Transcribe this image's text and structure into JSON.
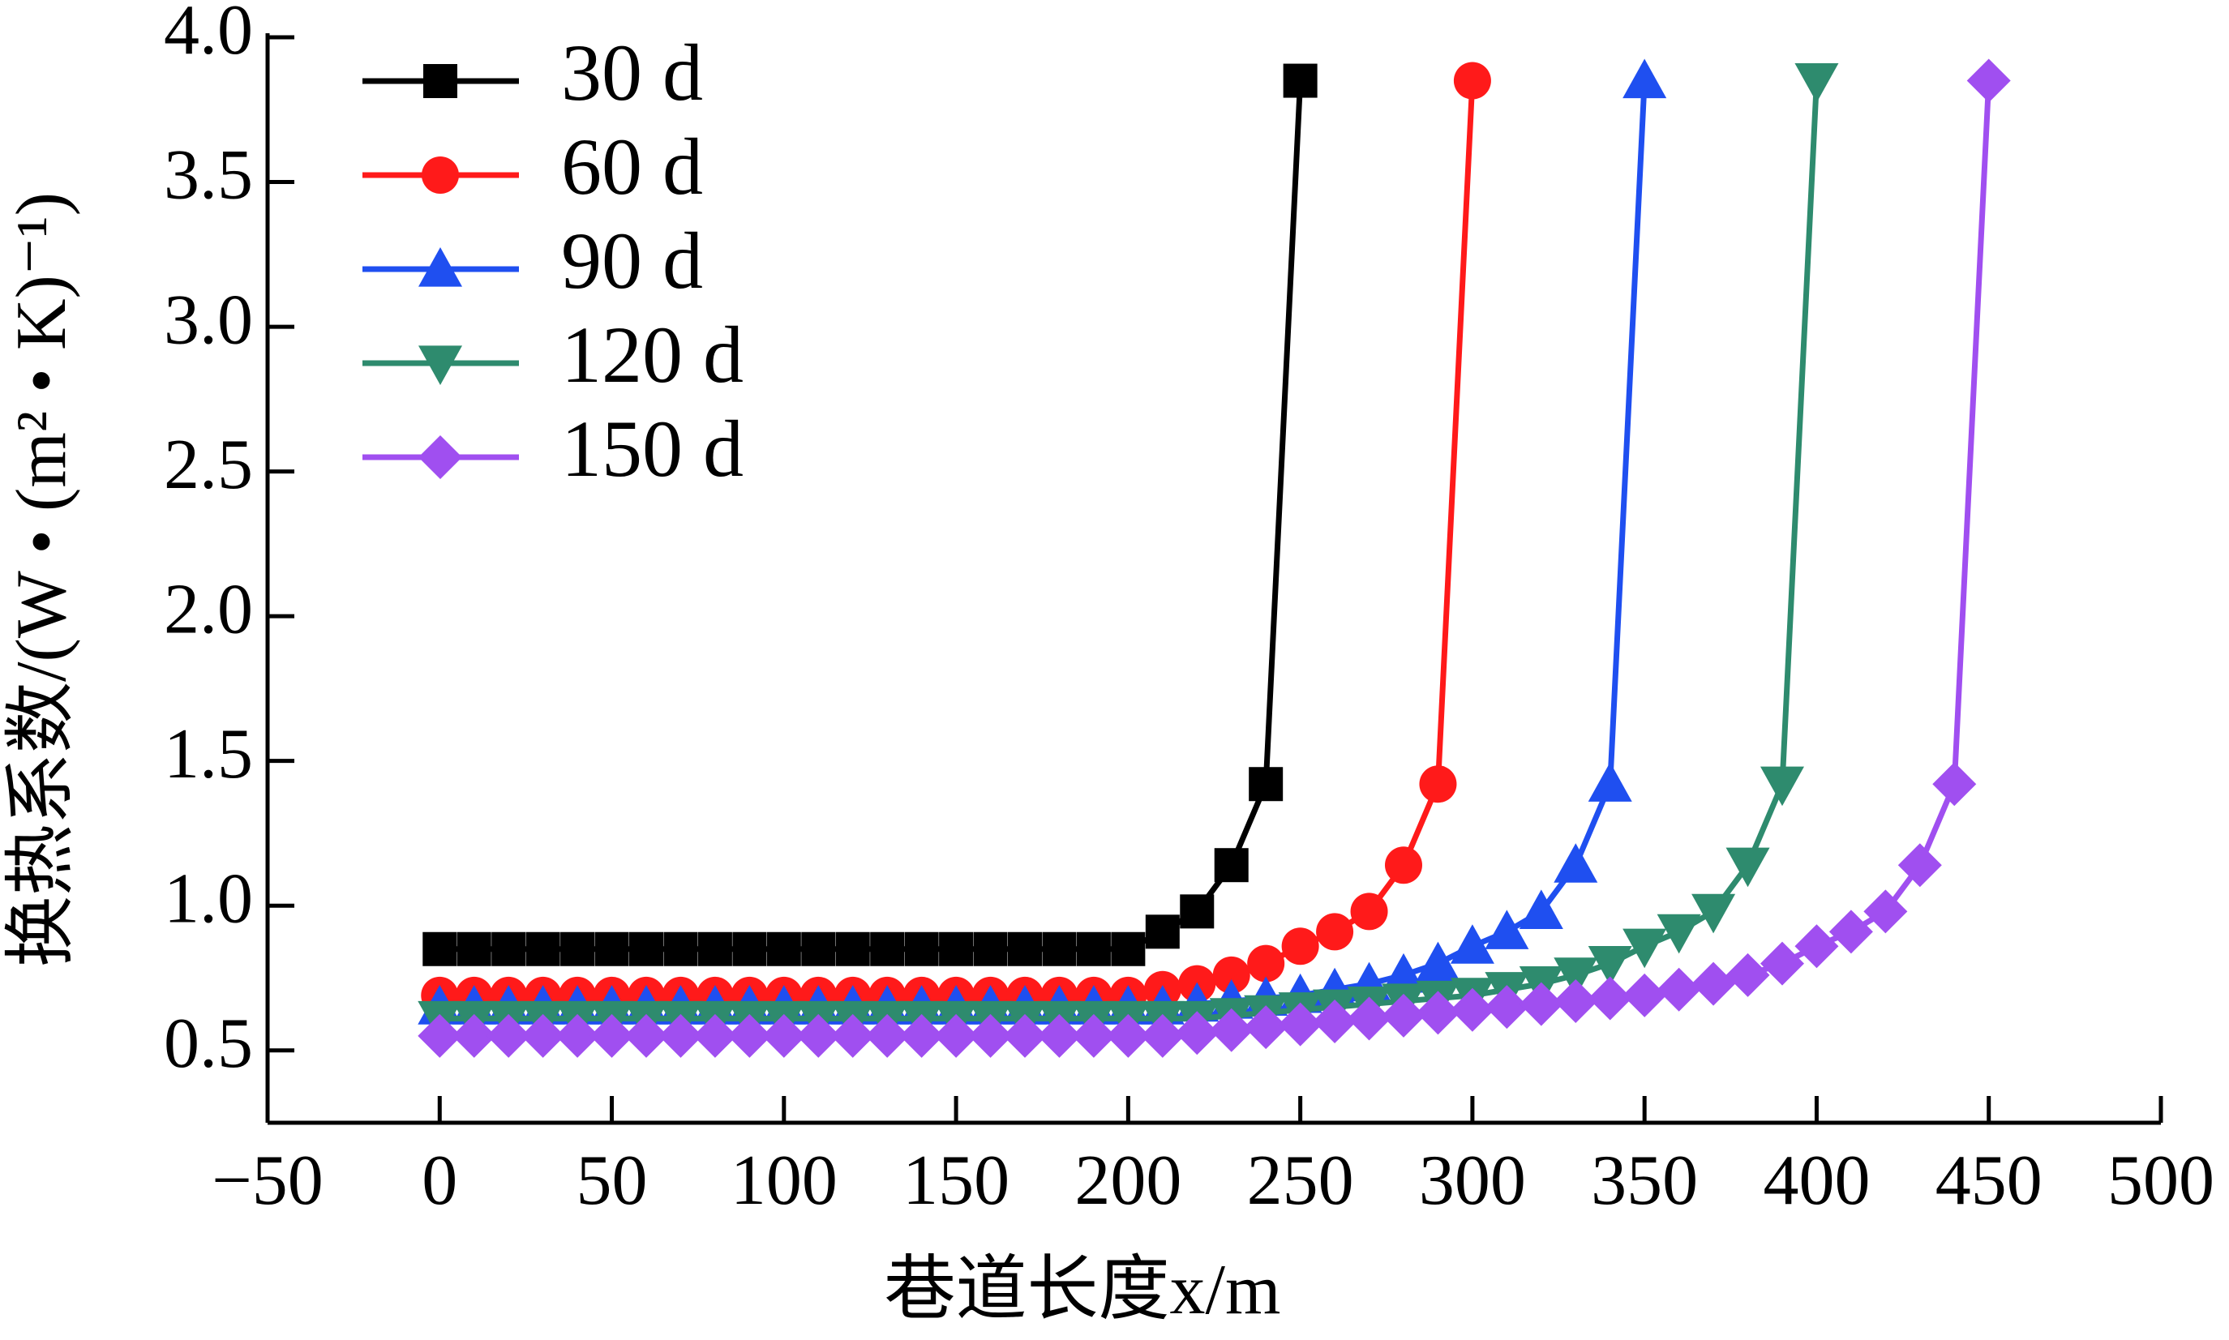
{
  "chart_data": {
    "type": "line",
    "xlabel": "巷道长度x/m",
    "ylabel": "换热系数/(W • (m² • K)⁻¹)",
    "x": [
      0,
      10,
      20,
      30,
      40,
      50,
      60,
      70,
      80,
      90,
      100,
      110,
      120,
      130,
      140,
      150,
      160,
      170,
      180,
      190,
      200,
      210,
      220,
      230,
      240,
      250,
      260,
      270,
      280,
      290,
      300,
      310,
      320,
      330,
      340,
      350,
      360,
      370,
      380,
      390,
      400,
      410,
      420,
      430,
      440,
      450
    ],
    "series": [
      {
        "name": "30 d",
        "color": "#000000",
        "marker": "square",
        "values": [
          0.85,
          0.85,
          0.85,
          0.85,
          0.85,
          0.85,
          0.85,
          0.85,
          0.85,
          0.85,
          0.85,
          0.85,
          0.85,
          0.85,
          0.85,
          0.85,
          0.85,
          0.85,
          0.85,
          0.85,
          0.85,
          0.91,
          0.98,
          1.14,
          1.42,
          3.85,
          null,
          null,
          null,
          null,
          null,
          null,
          null,
          null,
          null,
          null,
          null,
          null,
          null,
          null,
          null,
          null,
          null,
          null,
          null,
          null
        ]
      },
      {
        "name": "60 d",
        "color": "#ff1a1a",
        "marker": "circle",
        "values": [
          0.69,
          0.69,
          0.69,
          0.69,
          0.69,
          0.69,
          0.69,
          0.69,
          0.69,
          0.69,
          0.69,
          0.69,
          0.69,
          0.69,
          0.69,
          0.69,
          0.69,
          0.69,
          0.69,
          0.69,
          0.69,
          0.71,
          0.73,
          0.76,
          0.8,
          0.86,
          0.91,
          0.98,
          1.14,
          1.42,
          3.85,
          null,
          null,
          null,
          null,
          null,
          null,
          null,
          null,
          null,
          null,
          null,
          null,
          null,
          null,
          null
        ]
      },
      {
        "name": "90 d",
        "color": "#1f4ff0",
        "marker": "triangle",
        "values": [
          0.65,
          0.65,
          0.65,
          0.65,
          0.65,
          0.65,
          0.65,
          0.65,
          0.65,
          0.65,
          0.65,
          0.65,
          0.65,
          0.65,
          0.65,
          0.65,
          0.65,
          0.65,
          0.65,
          0.65,
          0.65,
          0.65,
          0.66,
          0.67,
          0.68,
          0.69,
          0.71,
          0.73,
          0.76,
          0.8,
          0.86,
          0.91,
          0.98,
          1.14,
          1.42,
          3.85,
          null,
          null,
          null,
          null,
          null,
          null,
          null,
          null,
          null,
          null
        ]
      },
      {
        "name": "120 d",
        "color": "#2e8b6e",
        "marker": "triangle-down",
        "values": [
          0.61,
          0.61,
          0.61,
          0.61,
          0.61,
          0.61,
          0.61,
          0.61,
          0.61,
          0.61,
          0.61,
          0.61,
          0.61,
          0.61,
          0.61,
          0.61,
          0.61,
          0.61,
          0.61,
          0.61,
          0.61,
          0.61,
          0.61,
          0.62,
          0.63,
          0.64,
          0.65,
          0.66,
          0.67,
          0.68,
          0.69,
          0.71,
          0.73,
          0.76,
          0.8,
          0.86,
          0.91,
          0.98,
          1.14,
          1.42,
          3.85,
          null,
          null,
          null,
          null,
          null
        ]
      },
      {
        "name": "150 d",
        "color": "#a04ff0",
        "marker": "diamond",
        "values": [
          0.55,
          0.55,
          0.55,
          0.55,
          0.55,
          0.55,
          0.55,
          0.55,
          0.55,
          0.55,
          0.55,
          0.55,
          0.55,
          0.55,
          0.55,
          0.55,
          0.55,
          0.55,
          0.55,
          0.55,
          0.55,
          0.55,
          0.56,
          0.57,
          0.58,
          0.59,
          0.6,
          0.61,
          0.62,
          0.63,
          0.64,
          0.65,
          0.66,
          0.67,
          0.68,
          0.69,
          0.71,
          0.73,
          0.76,
          0.8,
          0.86,
          0.91,
          0.98,
          1.14,
          1.42,
          3.85
        ]
      }
    ],
    "xlim": [
      -50,
      500
    ],
    "xticks": [
      {
        "value": -50,
        "label": "−50"
      },
      0,
      50,
      100,
      150,
      200,
      250,
      300,
      350,
      400,
      450,
      500
    ],
    "ylim": [
      0.25,
      4.0
    ],
    "yticks": [
      0.5,
      {
        "value": 1.0,
        "label": "1.0"
      },
      1.5,
      {
        "value": 2.0,
        "label": "2.0"
      },
      2.5,
      {
        "value": 3.0,
        "label": "3.0"
      },
      3.5,
      {
        "value": 4.0,
        "label": "4.0"
      }
    ],
    "legend": "upper left"
  }
}
